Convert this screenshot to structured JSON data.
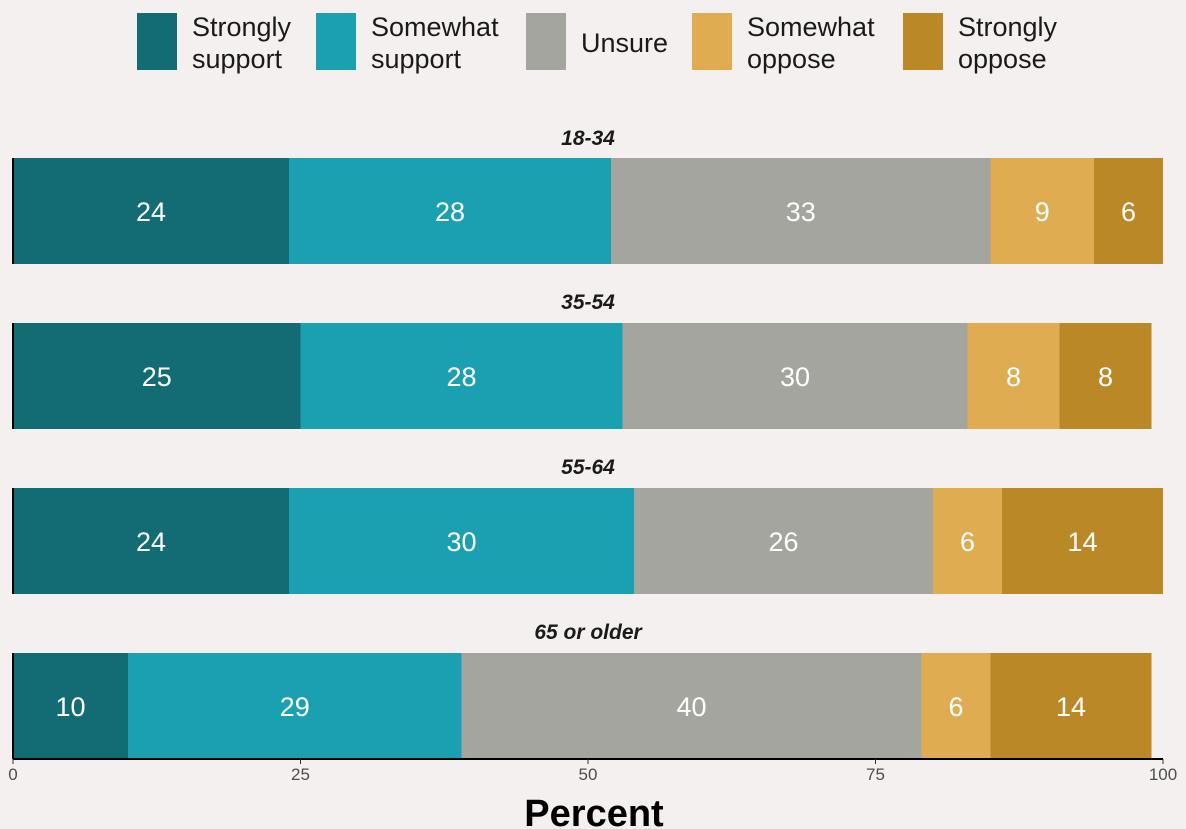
{
  "chart_data": {
    "type": "bar",
    "orientation": "horizontal",
    "stacked": true,
    "xlabel": "Percent",
    "xlim": [
      0,
      100
    ],
    "xticks": [
      "0",
      "25",
      "50",
      "75",
      "100"
    ],
    "legend_position": "top",
    "categories": [
      "18-34",
      "35-54",
      "55-64",
      "65 or older"
    ],
    "series": [
      {
        "name": "Strongly support",
        "legend_lines": [
          "Strongly",
          "support"
        ],
        "color": "#136b74",
        "values": [
          24,
          25,
          24,
          10
        ]
      },
      {
        "name": "Somewhat support",
        "legend_lines": [
          "Somewhat",
          "support"
        ],
        "color": "#1aa0b0",
        "values": [
          28,
          28,
          30,
          29
        ]
      },
      {
        "name": "Unsure",
        "legend_lines": [
          "Unsure"
        ],
        "color": "#a4a59f",
        "values": [
          33,
          30,
          26,
          40
        ]
      },
      {
        "name": "Somewhat oppose",
        "legend_lines": [
          "Somewhat",
          "oppose"
        ],
        "color": "#dfac52",
        "values": [
          9,
          8,
          6,
          6
        ]
      },
      {
        "name": "Strongly oppose",
        "legend_lines": [
          "Strongly",
          "oppose"
        ],
        "color": "#bb8828",
        "values": [
          6,
          8,
          14,
          14
        ]
      }
    ]
  }
}
